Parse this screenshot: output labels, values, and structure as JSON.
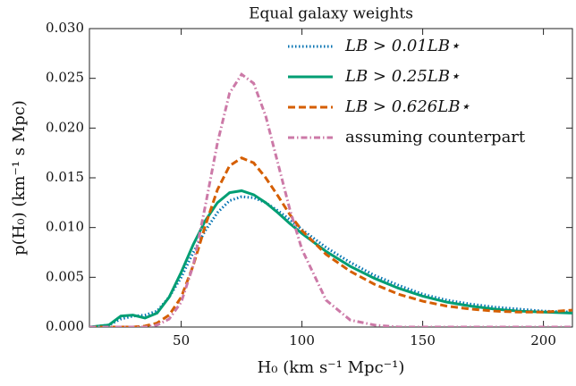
{
  "chart_data": {
    "type": "line",
    "title": "Equal galaxy weights",
    "x_label": "H₀ (km s⁻¹ Mpc⁻¹)",
    "y_label": "p(H₀) (km⁻¹ s Mpc)",
    "x": [
      12,
      20,
      25,
      30,
      35,
      40,
      45,
      50,
      55,
      60,
      65,
      70,
      75,
      80,
      85,
      90,
      95,
      100,
      110,
      120,
      130,
      140,
      150,
      160,
      170,
      180,
      190,
      200,
      212
    ],
    "series": [
      {
        "name": "LB > 0.01LB⋆",
        "color": "#0072b2",
        "linestyle": "dotted",
        "values": [
          0,
          0.0002,
          0.0008,
          0.0011,
          0.0012,
          0.0016,
          0.003,
          0.005,
          0.0075,
          0.0097,
          0.0115,
          0.0127,
          0.0131,
          0.013,
          0.0125,
          0.0117,
          0.0108,
          0.0098,
          0.008,
          0.0065,
          0.0052,
          0.0042,
          0.0033,
          0.0027,
          0.0023,
          0.002,
          0.0018,
          0.0016,
          0.0015
        ]
      },
      {
        "name": "LB > 0.25LB⋆",
        "color": "#009e73",
        "linestyle": "solid",
        "values": [
          0,
          0.0002,
          0.0011,
          0.0012,
          0.0009,
          0.0014,
          0.003,
          0.0055,
          0.0083,
          0.0107,
          0.0125,
          0.0135,
          0.0137,
          0.0133,
          0.0125,
          0.0115,
          0.0104,
          0.0094,
          0.0076,
          0.0061,
          0.0049,
          0.0039,
          0.0031,
          0.0025,
          0.0021,
          0.0018,
          0.0016,
          0.0015,
          0.0014
        ]
      },
      {
        "name": "LB > 0.626LB⋆",
        "color": "#d55e00",
        "linestyle": "dashed",
        "values": [
          0,
          0,
          0,
          0,
          0.0001,
          0.0004,
          0.0012,
          0.003,
          0.0062,
          0.0102,
          0.0138,
          0.0162,
          0.017,
          0.0165,
          0.015,
          0.0132,
          0.0113,
          0.0097,
          0.0073,
          0.0056,
          0.0043,
          0.0033,
          0.0026,
          0.0021,
          0.0018,
          0.0016,
          0.0015,
          0.0015,
          0.0017
        ]
      },
      {
        "name": "assuming counterpart",
        "color": "#cc79a7",
        "linestyle": "dashdot",
        "values": [
          0,
          0,
          0,
          0,
          0,
          0.0002,
          0.0008,
          0.0025,
          0.0062,
          0.0122,
          0.0185,
          0.0235,
          0.0254,
          0.0245,
          0.0212,
          0.0165,
          0.0118,
          0.0078,
          0.0027,
          0.0007,
          0.0002,
          0,
          0,
          0,
          0,
          0,
          0,
          0,
          0
        ]
      }
    ],
    "xlim": [
      12,
      212
    ],
    "ylim": [
      0,
      0.03
    ],
    "xticks": [
      50,
      100,
      150,
      200
    ],
    "yticks": [
      {
        "value": 0,
        "label": "0.000"
      },
      {
        "value": 0.005,
        "label": "0.005"
      },
      {
        "value": 0.01,
        "label": "0.010"
      },
      {
        "value": 0.015,
        "label": "0.015"
      },
      {
        "value": 0.02,
        "label": "0.020"
      },
      {
        "value": 0.025,
        "label": "0.025"
      },
      {
        "value": 0.03,
        "label": "0.030"
      }
    ],
    "legend": "upper right",
    "grid": false
  }
}
